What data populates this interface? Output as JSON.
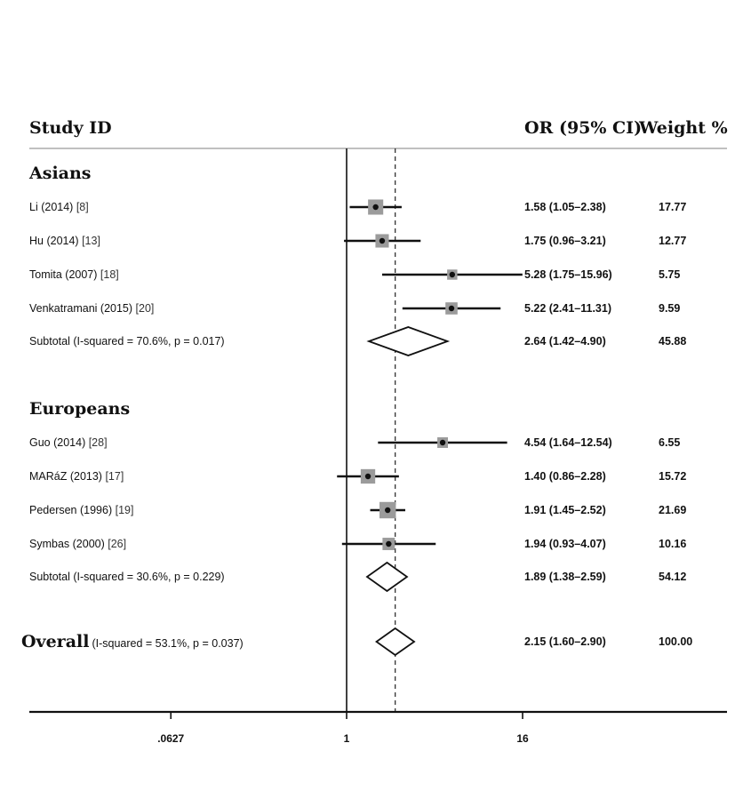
{
  "chart_data": {
    "type": "forest",
    "scale": "log2",
    "headers": {
      "study": "Study ID",
      "or": "OR (95% CI)",
      "weight": "Weight %"
    },
    "null_value": 1,
    "pooled_estimate": 2.15,
    "x_ticks": [
      {
        "value": 0.0627,
        "label": ".0627"
      },
      {
        "value": 1,
        "label": "1"
      },
      {
        "value": 16,
        "label": "16"
      }
    ],
    "groups": [
      {
        "name": "Asians",
        "studies": [
          {
            "label": "Li (2014)",
            "ref": "[8]",
            "or": 1.58,
            "lo": 1.05,
            "hi": 2.38,
            "ci_text": "1.58 (1.05–2.38)",
            "weight": "17.77"
          },
          {
            "label": "Hu (2014)",
            "ref": "[13]",
            "or": 1.75,
            "lo": 0.96,
            "hi": 3.21,
            "ci_text": "1.75 (0.96–3.21)",
            "weight": "12.77"
          },
          {
            "label": "Tomita (2007)",
            "ref": "[18]",
            "or": 5.28,
            "lo": 1.75,
            "hi": 15.96,
            "ci_text": "5.28 (1.75–15.96)",
            "weight": "5.75"
          },
          {
            "label": "Venkatramani (2015)",
            "ref": "[20]",
            "or": 5.22,
            "lo": 2.41,
            "hi": 11.31,
            "ci_text": "5.22 (2.41–11.31)",
            "weight": "9.59"
          }
        ],
        "subtotal": {
          "label": "Subtotal  (I-squared = 70.6%, p = 0.017)",
          "or": 2.64,
          "lo": 1.42,
          "hi": 4.9,
          "ci_text": "2.64 (1.42–4.90)",
          "weight": "45.88"
        }
      },
      {
        "name": "Europeans",
        "studies": [
          {
            "label": "Guo (2014)",
            "ref": "[28]",
            "or": 4.54,
            "lo": 1.64,
            "hi": 12.54,
            "ci_text": "4.54 (1.64–12.54)",
            "weight": "6.55"
          },
          {
            "label": "MARáZ (2013)",
            "ref": "[17]",
            "or": 1.4,
            "lo": 0.86,
            "hi": 2.28,
            "ci_text": "1.40 (0.86–2.28)",
            "weight": "15.72"
          },
          {
            "label": "Pedersen (1996)",
            "ref": "[19]",
            "or": 1.91,
            "lo": 1.45,
            "hi": 2.52,
            "ci_text": "1.91 (1.45–2.52)",
            "weight": "21.69"
          },
          {
            "label": "Symbas (2000)",
            "ref": "[26]",
            "or": 1.94,
            "lo": 0.93,
            "hi": 4.07,
            "ci_text": "1.94 (0.93–4.07)",
            "weight": "10.16"
          }
        ],
        "subtotal": {
          "label": "Subtotal  (I-squared = 30.6%, p = 0.229)",
          "or": 1.89,
          "lo": 1.38,
          "hi": 2.59,
          "ci_text": "1.89 (1.38–2.59)",
          "weight": "54.12"
        }
      }
    ],
    "overall": {
      "label": "Overall",
      "stats": "(I-squared = 53.1%, p = 0.037)",
      "or": 2.15,
      "lo": 1.6,
      "hi": 2.9,
      "ci_text": "2.15 (1.60–2.90)",
      "weight": "100.00"
    }
  }
}
